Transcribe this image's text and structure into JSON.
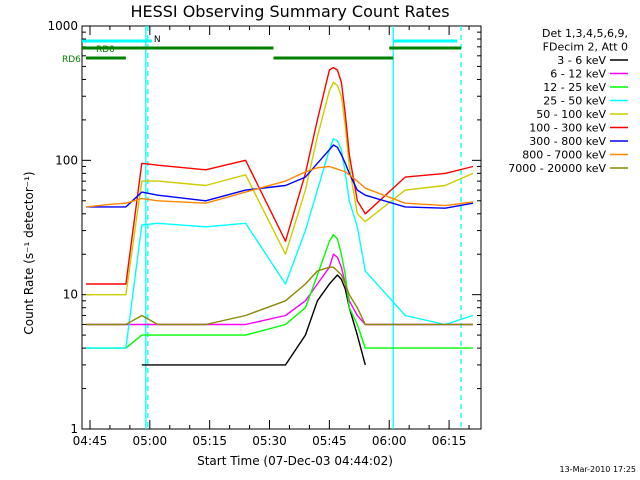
{
  "chart_data": {
    "type": "line",
    "title": "HESSI Observing Summary Count Rates",
    "xlabel": "Start Time (07-Dec-03 04:44:02)",
    "ylabel": "Count Rate (s⁻¹ detector⁻¹)",
    "yscale": "log",
    "ylim": [
      1,
      1000
    ],
    "xlim_minutes": [
      -1,
      99
    ],
    "x_unit": "minutes after 04:44:02",
    "x_ticks": [
      {
        "label": "04:45",
        "minute": 1
      },
      {
        "label": "05:00",
        "minute": 16
      },
      {
        "label": "05:15",
        "minute": 31
      },
      {
        "label": "05:30",
        "minute": 46
      },
      {
        "label": "05:45",
        "minute": 61
      },
      {
        "label": "06:00",
        "minute": 76
      },
      {
        "label": "06:15",
        "minute": 91
      }
    ],
    "y_ticks": [
      "1",
      "10",
      "100",
      "1000"
    ],
    "legend_title": [
      "Det 1,3,4,5,6,9,",
      "FDecim 2, Att 0"
    ],
    "legend_placement": "right",
    "series": [
      {
        "name": "3 - 6 keV",
        "color": "#000000",
        "x": [
          0,
          6,
          10,
          14,
          18,
          30,
          40,
          50,
          55,
          58,
          61,
          62,
          63,
          64,
          65,
          66,
          68,
          70,
          80,
          90,
          97
        ],
        "y": [
          null,
          null,
          null,
          3,
          3,
          3,
          3,
          3,
          5,
          9,
          12,
          13,
          14,
          13,
          11,
          8,
          5,
          3,
          null,
          null,
          null
        ]
      },
      {
        "name": "6 - 12 keV",
        "color": "#ff00ff",
        "x": [
          0,
          6,
          10,
          14,
          18,
          30,
          40,
          50,
          55,
          58,
          61,
          62,
          63,
          64,
          65,
          66,
          68,
          70,
          80,
          90,
          97
        ],
        "y": [
          6,
          6,
          6,
          6,
          6,
          6,
          6,
          7,
          9,
          12,
          16,
          20,
          19,
          16,
          12,
          9,
          7,
          6,
          6,
          6,
          6
        ]
      },
      {
        "name": "12 - 25 keV",
        "color": "#00ff00",
        "x": [
          0,
          6,
          10,
          14,
          18,
          30,
          40,
          50,
          55,
          58,
          61,
          62,
          63,
          64,
          65,
          66,
          68,
          70,
          80,
          90,
          97
        ],
        "y": [
          4,
          4,
          4,
          5,
          5,
          5,
          5,
          6,
          8,
          14,
          25,
          28,
          26,
          20,
          14,
          8,
          6,
          4,
          4,
          4,
          4
        ]
      },
      {
        "name": "25 - 50 keV",
        "color": "#00ffff",
        "x": [
          0,
          6,
          10,
          14,
          18,
          30,
          40,
          50,
          55,
          58,
          61,
          62,
          63,
          64,
          65,
          66,
          68,
          70,
          80,
          90,
          97
        ],
        "y": [
          4,
          4,
          4,
          33,
          34,
          32,
          34,
          12,
          30,
          60,
          120,
          145,
          140,
          120,
          80,
          50,
          32,
          15,
          7,
          6,
          7
        ]
      },
      {
        "name": "50 - 100 keV",
        "color": "#cccc00",
        "x": [
          0,
          6,
          10,
          14,
          18,
          30,
          40,
          50,
          55,
          58,
          61,
          62,
          63,
          64,
          65,
          66,
          68,
          70,
          80,
          90,
          97
        ],
        "y": [
          10,
          10,
          10,
          70,
          70,
          65,
          78,
          20,
          60,
          150,
          330,
          380,
          360,
          300,
          180,
          90,
          40,
          35,
          60,
          65,
          80
        ]
      },
      {
        "name": "100 - 300 keV",
        "color": "#ff0000",
        "x": [
          0,
          6,
          10,
          14,
          18,
          30,
          40,
          50,
          55,
          58,
          61,
          62,
          63,
          64,
          65,
          66,
          68,
          70,
          80,
          90,
          97
        ],
        "y": [
          12,
          12,
          12,
          95,
          92,
          85,
          100,
          25,
          80,
          200,
          470,
          490,
          470,
          380,
          220,
          110,
          50,
          40,
          75,
          80,
          90
        ]
      },
      {
        "name": "300 - 800 keV",
        "color": "#0000ff",
        "x": [
          0,
          6,
          10,
          14,
          18,
          30,
          40,
          50,
          55,
          58,
          61,
          62,
          63,
          64,
          65,
          66,
          68,
          70,
          80,
          90,
          97
        ],
        "y": [
          45,
          45,
          45,
          58,
          55,
          50,
          60,
          65,
          75,
          95,
          120,
          130,
          125,
          110,
          95,
          80,
          60,
          55,
          45,
          44,
          48
        ]
      },
      {
        "name": "800 - 7000 keV",
        "color": "#ff8800",
        "x": [
          0,
          6,
          10,
          14,
          18,
          30,
          40,
          50,
          55,
          58,
          61,
          62,
          63,
          64,
          65,
          66,
          68,
          70,
          80,
          90,
          97
        ],
        "y": [
          45,
          47,
          48,
          52,
          50,
          48,
          58,
          70,
          82,
          88,
          90,
          88,
          86,
          84,
          82,
          78,
          70,
          62,
          48,
          46,
          49
        ]
      },
      {
        "name": "7000 - 20000 keV",
        "color": "#888800",
        "x": [
          0,
          6,
          10,
          14,
          18,
          30,
          40,
          50,
          55,
          58,
          61,
          62,
          63,
          64,
          65,
          66,
          68,
          70,
          80,
          90,
          97
        ],
        "y": [
          6,
          6,
          6,
          7,
          6,
          6,
          7,
          9,
          12,
          15,
          16,
          16,
          15,
          14,
          12,
          10,
          8,
          6,
          6,
          6,
          6
        ]
      }
    ],
    "attenuator_bars": [
      {
        "label": "",
        "color": "#00ffff",
        "x": [
          -1,
          16
        ]
      },
      {
        "label": "N",
        "color": "#00ffff",
        "x": [
          16,
          16.5
        ]
      },
      {
        "label": "",
        "color": "#00ffff",
        "x": [
          77,
          93
        ]
      }
    ],
    "decimation_bars": [
      {
        "label": "RD0",
        "color": "#008000",
        "row": 1,
        "x": [
          -1,
          47
        ]
      },
      {
        "label": "",
        "color": "#008000",
        "row": 1,
        "x": [
          76,
          94
        ]
      },
      {
        "label": "RD6",
        "color": "#008000",
        "row": 2,
        "x": [
          0,
          10
        ]
      },
      {
        "label": "",
        "color": "#008000",
        "row": 2,
        "x": [
          47,
          77
        ]
      }
    ],
    "vertical_markers": [
      {
        "color": "#00ffff",
        "style": "solid",
        "minute": 15
      },
      {
        "color": "#00ffff",
        "style": "dashed",
        "minute": 15.5
      },
      {
        "color": "#00ffff",
        "style": "solid",
        "minute": 77
      },
      {
        "color": "#00ffff",
        "style": "dashed",
        "minute": 94
      }
    ],
    "footer": "13-Mar-2010 17:25"
  }
}
